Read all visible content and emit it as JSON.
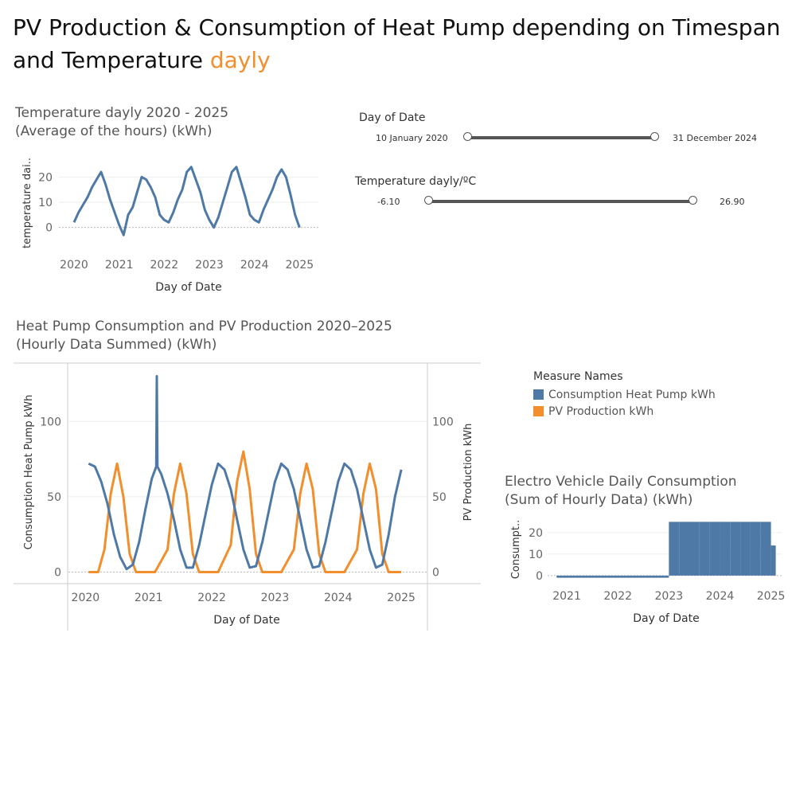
{
  "page": {
    "title_main": "PV Production & Consumption of Heat Pump depending on Timespan and Temperature",
    "title_accent": "dayly",
    "accent_color": "#f28e2b"
  },
  "filters": {
    "date": {
      "label": "Day of Date",
      "min": "10 January 2020",
      "max": "31 December 2024"
    },
    "temperature": {
      "label": "Temperature dayly/ºC",
      "min": "-6.10",
      "max": "26.90"
    }
  },
  "legend": {
    "title": "Measure Names",
    "items": [
      {
        "label": "Consumption Heat Pump kWh",
        "color": "#4e79a7"
      },
      {
        "label": "PV Production kWh",
        "color": "#f28e2b"
      }
    ]
  },
  "chart_data": [
    {
      "id": "temperature",
      "type": "line",
      "title_line1": "Temperature dayly 2020 - 2025",
      "title_line2": "(Average of the hours) (kWh)",
      "xlabel": "Day of Date",
      "ylabel": "temperature dai..",
      "x_ticks": [
        "2020",
        "2021",
        "2022",
        "2023",
        "2024",
        "2025"
      ],
      "y_ticks": [
        0,
        10,
        20
      ],
      "xlim": [
        2020.0,
        2025.1
      ],
      "ylim": [
        -8,
        28
      ],
      "color": "#4e79a7",
      "series": [
        {
          "x": [
            2020.0,
            2020.1,
            2020.2,
            2020.3,
            2020.4,
            2020.5,
            2020.6,
            2020.7,
            2020.8,
            2020.9,
            2021.0,
            2021.1,
            2021.2,
            2021.3,
            2021.4,
            2021.5,
            2021.6,
            2021.7,
            2021.8,
            2021.9,
            2022.0,
            2022.1,
            2022.2,
            2022.3,
            2022.4,
            2022.5,
            2022.6,
            2022.7,
            2022.8,
            2022.9,
            2023.0,
            2023.1,
            2023.2,
            2023.3,
            2023.4,
            2023.5,
            2023.6,
            2023.7,
            2023.8,
            2023.9,
            2024.0,
            2024.1,
            2024.2,
            2024.3,
            2024.4,
            2024.5,
            2024.6,
            2024.7,
            2024.8,
            2024.9,
            2025.0
          ],
          "y": [
            2,
            6,
            9,
            12,
            16,
            19,
            22,
            17,
            11,
            6,
            1,
            -3,
            5,
            8,
            14,
            20,
            19,
            16,
            12,
            5,
            3,
            2,
            6,
            11,
            15,
            22,
            24,
            19,
            14,
            7,
            3,
            0,
            4,
            10,
            16,
            22,
            24,
            18,
            12,
            5,
            3,
            2,
            7,
            11,
            15,
            20,
            23,
            20,
            13,
            5,
            0
          ]
        }
      ]
    },
    {
      "id": "hp-pv",
      "type": "line",
      "title_line1": "Heat Pump Consumption and PV Production 2020–2025",
      "title_line2": "(Hourly Data Summed) (kWh)",
      "xlabel": "Day of Date",
      "ylabel_left": "Consumption Heat Pump kWh",
      "ylabel_right": "PV Production kWh",
      "x_ticks": [
        "2020",
        "2021",
        "2022",
        "2023",
        "2024",
        "2025"
      ],
      "y_ticks": [
        0,
        50,
        100
      ],
      "xlim": [
        2019.97,
        2025.2
      ],
      "ylim": [
        -5,
        135
      ],
      "series": [
        {
          "name": "Consumption Heat Pump kWh",
          "color": "#4e79a7",
          "x": [
            2020.05,
            2020.15,
            2020.25,
            2020.35,
            2020.45,
            2020.55,
            2020.65,
            2020.75,
            2020.85,
            2020.95,
            2021.05,
            2021.12,
            2021.13,
            2021.14,
            2021.2,
            2021.3,
            2021.4,
            2021.5,
            2021.6,
            2021.7,
            2021.8,
            2021.9,
            2022.0,
            2022.1,
            2022.2,
            2022.3,
            2022.4,
            2022.5,
            2022.6,
            2022.7,
            2022.8,
            2022.9,
            2023.0,
            2023.1,
            2023.2,
            2023.3,
            2023.4,
            2023.5,
            2023.6,
            2023.7,
            2023.8,
            2023.9,
            2024.0,
            2024.1,
            2024.2,
            2024.3,
            2024.4,
            2024.5,
            2024.6,
            2024.7,
            2024.8,
            2024.9,
            2025.0
          ],
          "y": [
            72,
            70,
            60,
            45,
            25,
            10,
            2,
            5,
            20,
            42,
            62,
            70,
            130,
            70,
            65,
            52,
            35,
            15,
            3,
            3,
            18,
            38,
            58,
            72,
            68,
            55,
            35,
            15,
            3,
            4,
            20,
            40,
            60,
            72,
            68,
            55,
            35,
            15,
            3,
            4,
            20,
            40,
            60,
            72,
            68,
            55,
            35,
            15,
            3,
            5,
            25,
            50,
            68
          ]
        },
        {
          "name": "PV Production kWh",
          "color": "#f28e2b",
          "x": [
            2020.05,
            2020.2,
            2020.3,
            2020.4,
            2020.5,
            2020.6,
            2020.7,
            2020.8,
            2021.1,
            2021.3,
            2021.4,
            2021.5,
            2021.6,
            2021.7,
            2021.8,
            2022.1,
            2022.3,
            2022.4,
            2022.5,
            2022.6,
            2022.7,
            2022.8,
            2023.1,
            2023.3,
            2023.4,
            2023.5,
            2023.6,
            2023.7,
            2023.8,
            2024.1,
            2024.3,
            2024.4,
            2024.5,
            2024.6,
            2024.7,
            2024.8,
            2025.0
          ],
          "y": [
            0,
            0,
            15,
            52,
            72,
            50,
            12,
            0,
            0,
            15,
            52,
            72,
            52,
            12,
            0,
            0,
            18,
            60,
            80,
            55,
            12,
            0,
            0,
            15,
            52,
            72,
            55,
            12,
            0,
            0,
            15,
            52,
            72,
            55,
            12,
            0,
            0
          ]
        }
      ]
    },
    {
      "id": "ev",
      "type": "bar",
      "title_line1": "Electro Vehicle Daily Consumption",
      "title_line2": "(Sum of Hourly Data) (kWh)",
      "xlabel": "Day of Date",
      "ylabel": "Consumpt..",
      "x_ticks": [
        "2021",
        "2022",
        "2023",
        "2024",
        "2025"
      ],
      "y_ticks": [
        0,
        10,
        20
      ],
      "xlim": [
        2020.5,
        2025.1
      ],
      "ylim": [
        -3,
        27
      ],
      "color": "#4e79a7",
      "series": [
        {
          "x": [
            2020.8,
            2022.98,
            2023.0,
            2023.2,
            2023.4,
            2023.6,
            2023.8,
            2024.0,
            2024.2,
            2024.4,
            2024.6,
            2024.8,
            2025.0
          ],
          "y": [
            -1,
            -1,
            25,
            25,
            25,
            25,
            25,
            25,
            25,
            25,
            25,
            25,
            14
          ]
        }
      ]
    }
  ]
}
